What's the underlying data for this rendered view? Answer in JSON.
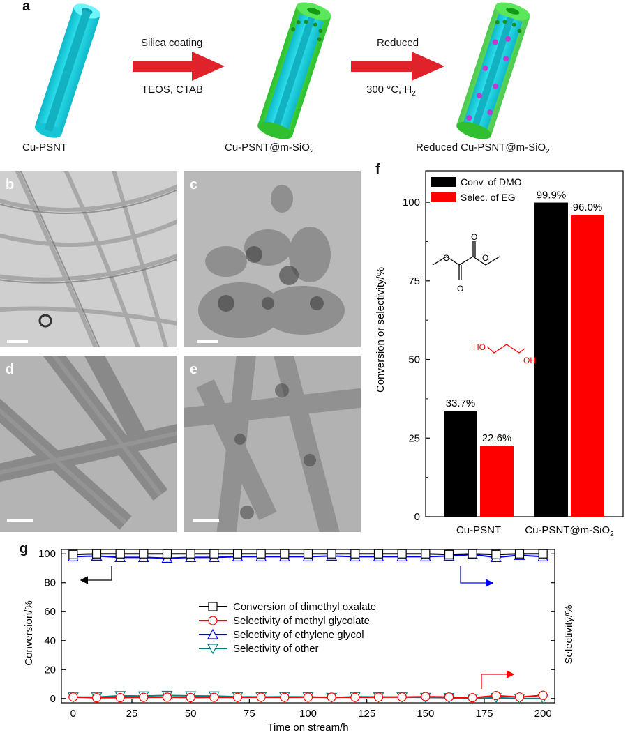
{
  "panel_a": {
    "letter": "a",
    "stage1_label": "Cu-PSNT",
    "step1_top": "Silica coating",
    "step1_bottom": "TEOS, CTAB",
    "stage2_label": "Cu-PSNT@m-SiO",
    "stage2_sub": "2",
    "step2_top": "Reduced",
    "step2_bottom": "300 °C, H",
    "step2_sub": "2",
    "stage3_label": "Reduced Cu-PSNT@m-SiO",
    "stage3_sub": "2",
    "colors": {
      "tube": "#1fd6e6",
      "silica": "#3cdc3c",
      "arrow": "#e0232a",
      "particle": "#c03ad0"
    }
  },
  "tem_panels": [
    {
      "letter": "b",
      "tone": "#cfcfcf"
    },
    {
      "letter": "c",
      "tone": "#b9b9b9"
    },
    {
      "letter": "d",
      "tone": "#b4b4b4"
    },
    {
      "letter": "e",
      "tone": "#b2b2b2"
    }
  ],
  "panel_f": {
    "letter": "f",
    "chart_data": {
      "type": "bar",
      "categories": [
        "Cu-PSNT",
        "Cu-PSNT@m-SiO2"
      ],
      "series": [
        {
          "name": "Conv. of DMO",
          "color": "#000000",
          "values": [
            33.7,
            99.9
          ],
          "labels": [
            "33.7%",
            "99.9%"
          ]
        },
        {
          "name": "Selec. of EG",
          "color": "#ff0000",
          "values": [
            22.6,
            96.0
          ],
          "labels": [
            "22.6%",
            "96.0%"
          ]
        }
      ],
      "ylabel": "Conversion or selectivity/%",
      "ylim": [
        0,
        110
      ],
      "yticks": [
        0,
        25,
        50,
        75,
        100
      ],
      "legend": "top-left"
    },
    "molecule_labels": {
      "ho": "HO",
      "oh": "OH",
      "o": "O"
    }
  },
  "panel_g": {
    "letter": "g",
    "chart_data": {
      "type": "line",
      "xlabel": "Time on stream/h",
      "ylabel_left": "Conversion/%",
      "ylabel_right": "Selectivity/%",
      "xlim": [
        -5,
        205
      ],
      "ylim": [
        -3,
        103
      ],
      "xticks": [
        0,
        25,
        50,
        75,
        100,
        125,
        150,
        175,
        200
      ],
      "yticks": [
        0,
        20,
        40,
        60,
        80,
        100
      ],
      "x": [
        0,
        10,
        20,
        30,
        40,
        50,
        60,
        70,
        80,
        90,
        100,
        110,
        120,
        130,
        140,
        150,
        160,
        170,
        180,
        190,
        200
      ],
      "series": [
        {
          "name": "Conversion of dimethyl oxalate",
          "color": "#000000",
          "marker": "square",
          "values": [
            99.5,
            100,
            100,
            100,
            100,
            100,
            100,
            100,
            100,
            100,
            100,
            100,
            100,
            100,
            100,
            100,
            99.5,
            100,
            99.5,
            100,
            100
          ]
        },
        {
          "name": "Selectivity of methyl glycolate",
          "color": "#ff0000",
          "marker": "circle",
          "values": [
            1.0,
            0.5,
            0.6,
            0.8,
            0.9,
            0.7,
            0.8,
            0.8,
            0.9,
            0.8,
            0.9,
            0.9,
            0.8,
            0.9,
            1.0,
            1.3,
            1.0,
            0.5,
            2.0,
            1.0,
            2.2
          ]
        },
        {
          "name": "Selectivity of ethylene glycol",
          "color": "#0000ff",
          "marker": "triangle-up",
          "values": [
            98.0,
            98.5,
            97.5,
            97.5,
            97.0,
            97.5,
            97.5,
            98.0,
            98.0,
            98.0,
            98.0,
            98.5,
            98.0,
            98.0,
            98.0,
            98.0,
            98.5,
            99.5,
            97.5,
            99.0,
            98.0
          ]
        },
        {
          "name": "Selectivity of other",
          "color": "#008080",
          "marker": "triangle-down",
          "values": [
            1.0,
            1.0,
            1.9,
            1.7,
            2.1,
            1.8,
            1.7,
            1.2,
            1.1,
            1.2,
            1.1,
            0.6,
            1.2,
            1.1,
            1.0,
            0.7,
            0.5,
            0.0,
            0.5,
            0.0,
            0.0
          ]
        }
      ],
      "legend": "center"
    }
  }
}
